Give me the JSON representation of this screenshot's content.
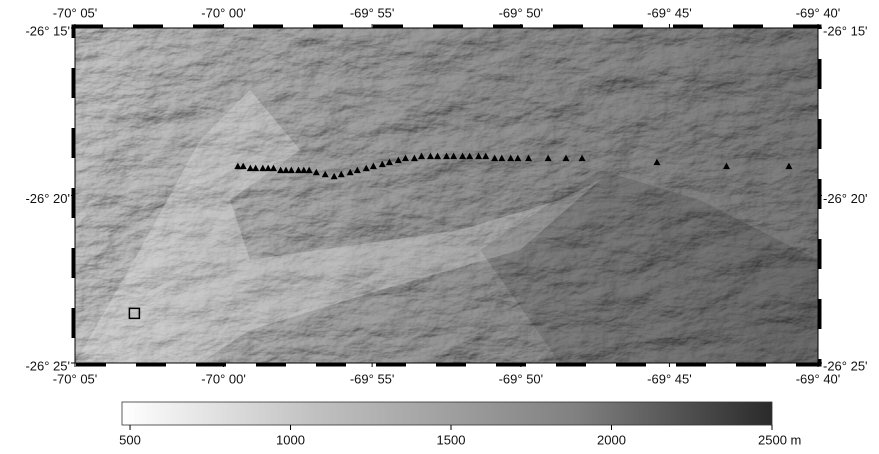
{
  "map": {
    "lon_range": [
      -70.0833,
      -69.6667
    ],
    "lat_range": [
      -26.4167,
      -26.25
    ],
    "lon_ticks": [
      {
        "value": -70.0833,
        "label": "-70° 05'"
      },
      {
        "value": -70.0,
        "label": "-70° 00'"
      },
      {
        "value": -69.9167,
        "label": "-69° 55'"
      },
      {
        "value": -69.8333,
        "label": "-69° 50'"
      },
      {
        "value": -69.75,
        "label": "-69° 45'"
      },
      {
        "value": -69.6667,
        "label": "-69° 40'"
      }
    ],
    "lat_ticks": [
      {
        "value": -26.25,
        "label": "-26° 15'"
      },
      {
        "value": -26.3333,
        "label": "-26° 20'"
      },
      {
        "value": -26.4167,
        "label": "-26° 25'"
      }
    ],
    "stations": {
      "lon": [
        -69.992,
        -69.989,
        -69.985,
        -69.982,
        -69.978,
        -69.975,
        -69.972,
        -69.968,
        -69.965,
        -69.962,
        -69.958,
        -69.955,
        -69.952,
        -69.948,
        -69.943,
        -69.938,
        -69.934,
        -69.929,
        -69.925,
        -69.92,
        -69.916,
        -69.911,
        -69.907,
        -69.902,
        -69.898,
        -69.893,
        -69.889,
        -69.884,
        -69.88,
        -69.875,
        -69.871,
        -69.866,
        -69.862,
        -69.857,
        -69.853,
        -69.848,
        -69.844,
        -69.839,
        -69.835,
        -69.829,
        -69.818,
        -69.808,
        -69.799,
        -69.757,
        -69.718,
        -69.683
      ],
      "lat": [
        -26.319,
        -26.319,
        -26.32,
        -26.32,
        -26.32,
        -26.32,
        -26.32,
        -26.321,
        -26.321,
        -26.321,
        -26.321,
        -26.321,
        -26.321,
        -26.322,
        -26.323,
        -26.324,
        -26.323,
        -26.322,
        -26.321,
        -26.32,
        -26.319,
        -26.318,
        -26.317,
        -26.316,
        -26.315,
        -26.315,
        -26.314,
        -26.314,
        -26.314,
        -26.314,
        -26.314,
        -26.314,
        -26.314,
        -26.314,
        -26.314,
        -26.315,
        -26.315,
        -26.315,
        -26.315,
        -26.315,
        -26.315,
        -26.315,
        -26.315,
        -26.317,
        -26.319,
        -26.319
      ]
    },
    "site": {
      "lon": -70.05,
      "lat": -26.392
    },
    "colorbar": {
      "range": [
        475,
        2500
      ],
      "ticks": [
        500,
        1000,
        1500,
        2000,
        {
          "value": 2500,
          "label": "2500 m"
        }
      ]
    }
  }
}
